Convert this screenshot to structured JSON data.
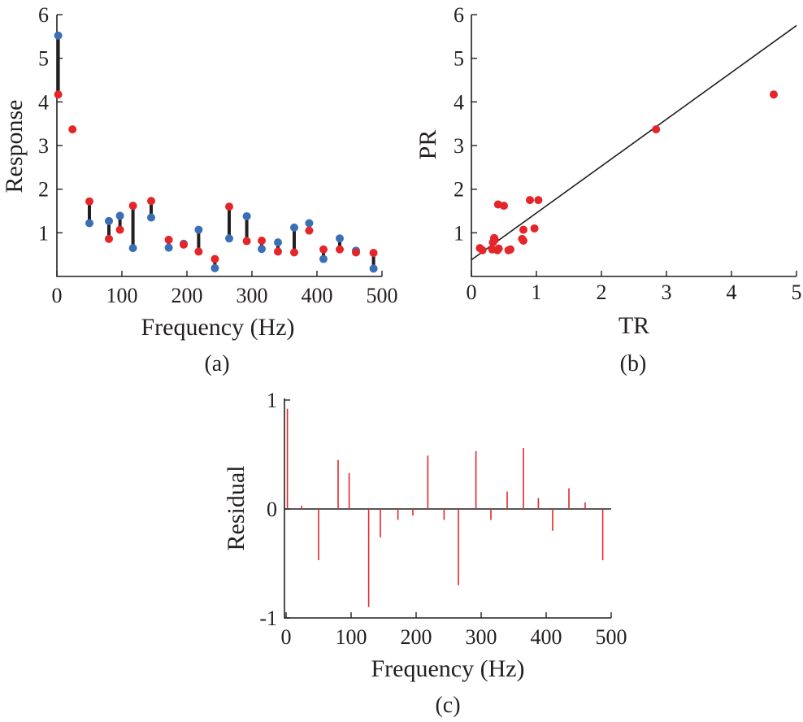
{
  "colors": {
    "red": "#e4262a",
    "blue": "#3a6fb6",
    "black": "#231f20"
  },
  "chart_data": [
    {
      "panel": "(a)",
      "type": "scatter",
      "xlabel": "Frequency (Hz)",
      "ylabel": "Response",
      "xlim": [
        0,
        500
      ],
      "ylim": [
        0,
        6
      ],
      "xticks": [
        "0",
        "100",
        "200",
        "300",
        "400",
        "500"
      ],
      "yticks": [
        "1",
        "2",
        "3",
        "4",
        "5",
        "6"
      ],
      "grid": false,
      "legend": "none",
      "series": [
        {
          "color": "blue",
          "points": [
            [
              2,
              5.52
            ],
            [
              50,
              1.22
            ],
            [
              80,
              1.27
            ],
            [
              97,
              1.39
            ],
            [
              117,
              0.65
            ],
            [
              145,
              1.35
            ],
            [
              172,
              0.66
            ],
            [
              195,
              0.75
            ],
            [
              218,
              1.07
            ],
            [
              243,
              0.19
            ],
            [
              265,
              0.87
            ],
            [
              292,
              1.38
            ],
            [
              315,
              0.63
            ],
            [
              340,
              0.78
            ],
            [
              365,
              1.12
            ],
            [
              388,
              1.22
            ],
            [
              410,
              0.4
            ],
            [
              435,
              0.87
            ],
            [
              460,
              0.59
            ],
            [
              487,
              0.18
            ]
          ]
        },
        {
          "color": "red",
          "points": [
            [
              2,
              4.17
            ],
            [
              24,
              3.37
            ],
            [
              50,
              1.72
            ],
            [
              80,
              0.86
            ],
            [
              97,
              1.07
            ],
            [
              117,
              1.62
            ],
            [
              145,
              1.73
            ],
            [
              172,
              0.84
            ],
            [
              195,
              0.73
            ],
            [
              218,
              0.57
            ],
            [
              243,
              0.4
            ],
            [
              265,
              1.6
            ],
            [
              292,
              0.81
            ],
            [
              315,
              0.82
            ],
            [
              340,
              0.57
            ],
            [
              365,
              0.55
            ],
            [
              388,
              1.05
            ],
            [
              410,
              0.62
            ],
            [
              435,
              0.62
            ],
            [
              460,
              0.55
            ],
            [
              487,
              0.54
            ]
          ]
        }
      ],
      "connectors": [
        [
          2,
          5.52,
          4.17
        ],
        [
          50,
          1.22,
          1.72
        ],
        [
          80,
          1.27,
          0.86
        ],
        [
          97,
          1.39,
          1.07
        ],
        [
          117,
          0.65,
          1.62
        ],
        [
          145,
          1.35,
          1.73
        ],
        [
          172,
          0.66,
          0.84
        ],
        [
          195,
          0.75,
          0.73
        ],
        [
          218,
          1.07,
          0.57
        ],
        [
          243,
          0.19,
          0.4
        ],
        [
          265,
          0.87,
          1.6
        ],
        [
          292,
          1.38,
          0.81
        ],
        [
          315,
          0.63,
          0.82
        ],
        [
          340,
          0.78,
          0.57
        ],
        [
          365,
          1.12,
          0.55
        ],
        [
          388,
          1.22,
          1.05
        ],
        [
          410,
          0.4,
          0.62
        ],
        [
          435,
          0.87,
          0.62
        ],
        [
          460,
          0.59,
          0.55
        ],
        [
          487,
          0.18,
          0.54
        ]
      ]
    },
    {
      "panel": "(b)",
      "type": "scatter",
      "xlabel": "TR",
      "ylabel": "PR",
      "xlim": [
        0,
        5
      ],
      "ylim": [
        0,
        6
      ],
      "xticks": [
        "0",
        "1",
        "2",
        "3",
        "4",
        "5"
      ],
      "yticks": [
        "1",
        "2",
        "3",
        "4",
        "5",
        "6"
      ],
      "grid": false,
      "legend": "none",
      "points": [
        [
          0.13,
          0.65
        ],
        [
          0.17,
          0.6
        ],
        [
          0.32,
          0.62
        ],
        [
          0.33,
          0.78
        ],
        [
          0.35,
          0.88
        ],
        [
          0.36,
          0.84
        ],
        [
          0.4,
          0.6
        ],
        [
          0.42,
          0.64
        ],
        [
          0.41,
          1.65
        ],
        [
          0.5,
          1.62
        ],
        [
          0.57,
          0.6
        ],
        [
          0.6,
          0.62
        ],
        [
          0.78,
          0.86
        ],
        [
          0.8,
          1.07
        ],
        [
          0.8,
          0.82
        ],
        [
          0.9,
          1.75
        ],
        [
          0.97,
          1.1
        ],
        [
          1.03,
          1.75
        ],
        [
          2.84,
          3.37
        ],
        [
          4.65,
          4.17
        ]
      ],
      "fit_line": [
        [
          0,
          0.38
        ],
        [
          5,
          5.75
        ]
      ]
    },
    {
      "panel": "(c)",
      "type": "bar",
      "xlabel": "Frequency (Hz)",
      "ylabel": "Residual",
      "xlim": [
        0,
        500
      ],
      "ylim": [
        -1,
        1
      ],
      "xticks": [
        "0",
        "100",
        "200",
        "300",
        "400",
        "500"
      ],
      "yticks": [
        "-1",
        "0",
        "1"
      ],
      "grid": false,
      "legend": "none",
      "stems": [
        [
          2,
          0.92
        ],
        [
          24,
          0.03
        ],
        [
          50,
          -0.47
        ],
        [
          80,
          0.45
        ],
        [
          97,
          0.33
        ],
        [
          127,
          -0.9
        ],
        [
          145,
          -0.26
        ],
        [
          172,
          -0.1
        ],
        [
          195,
          -0.06
        ],
        [
          218,
          0.49
        ],
        [
          243,
          -0.1
        ],
        [
          265,
          -0.7
        ],
        [
          292,
          0.53
        ],
        [
          315,
          -0.1
        ],
        [
          340,
          0.16
        ],
        [
          365,
          0.56
        ],
        [
          388,
          0.1
        ],
        [
          410,
          -0.2
        ],
        [
          435,
          0.19
        ],
        [
          460,
          0.06
        ],
        [
          487,
          -0.47
        ]
      ]
    }
  ],
  "captions": {
    "a": "(a)",
    "b": "(b)",
    "c": "(c)"
  }
}
